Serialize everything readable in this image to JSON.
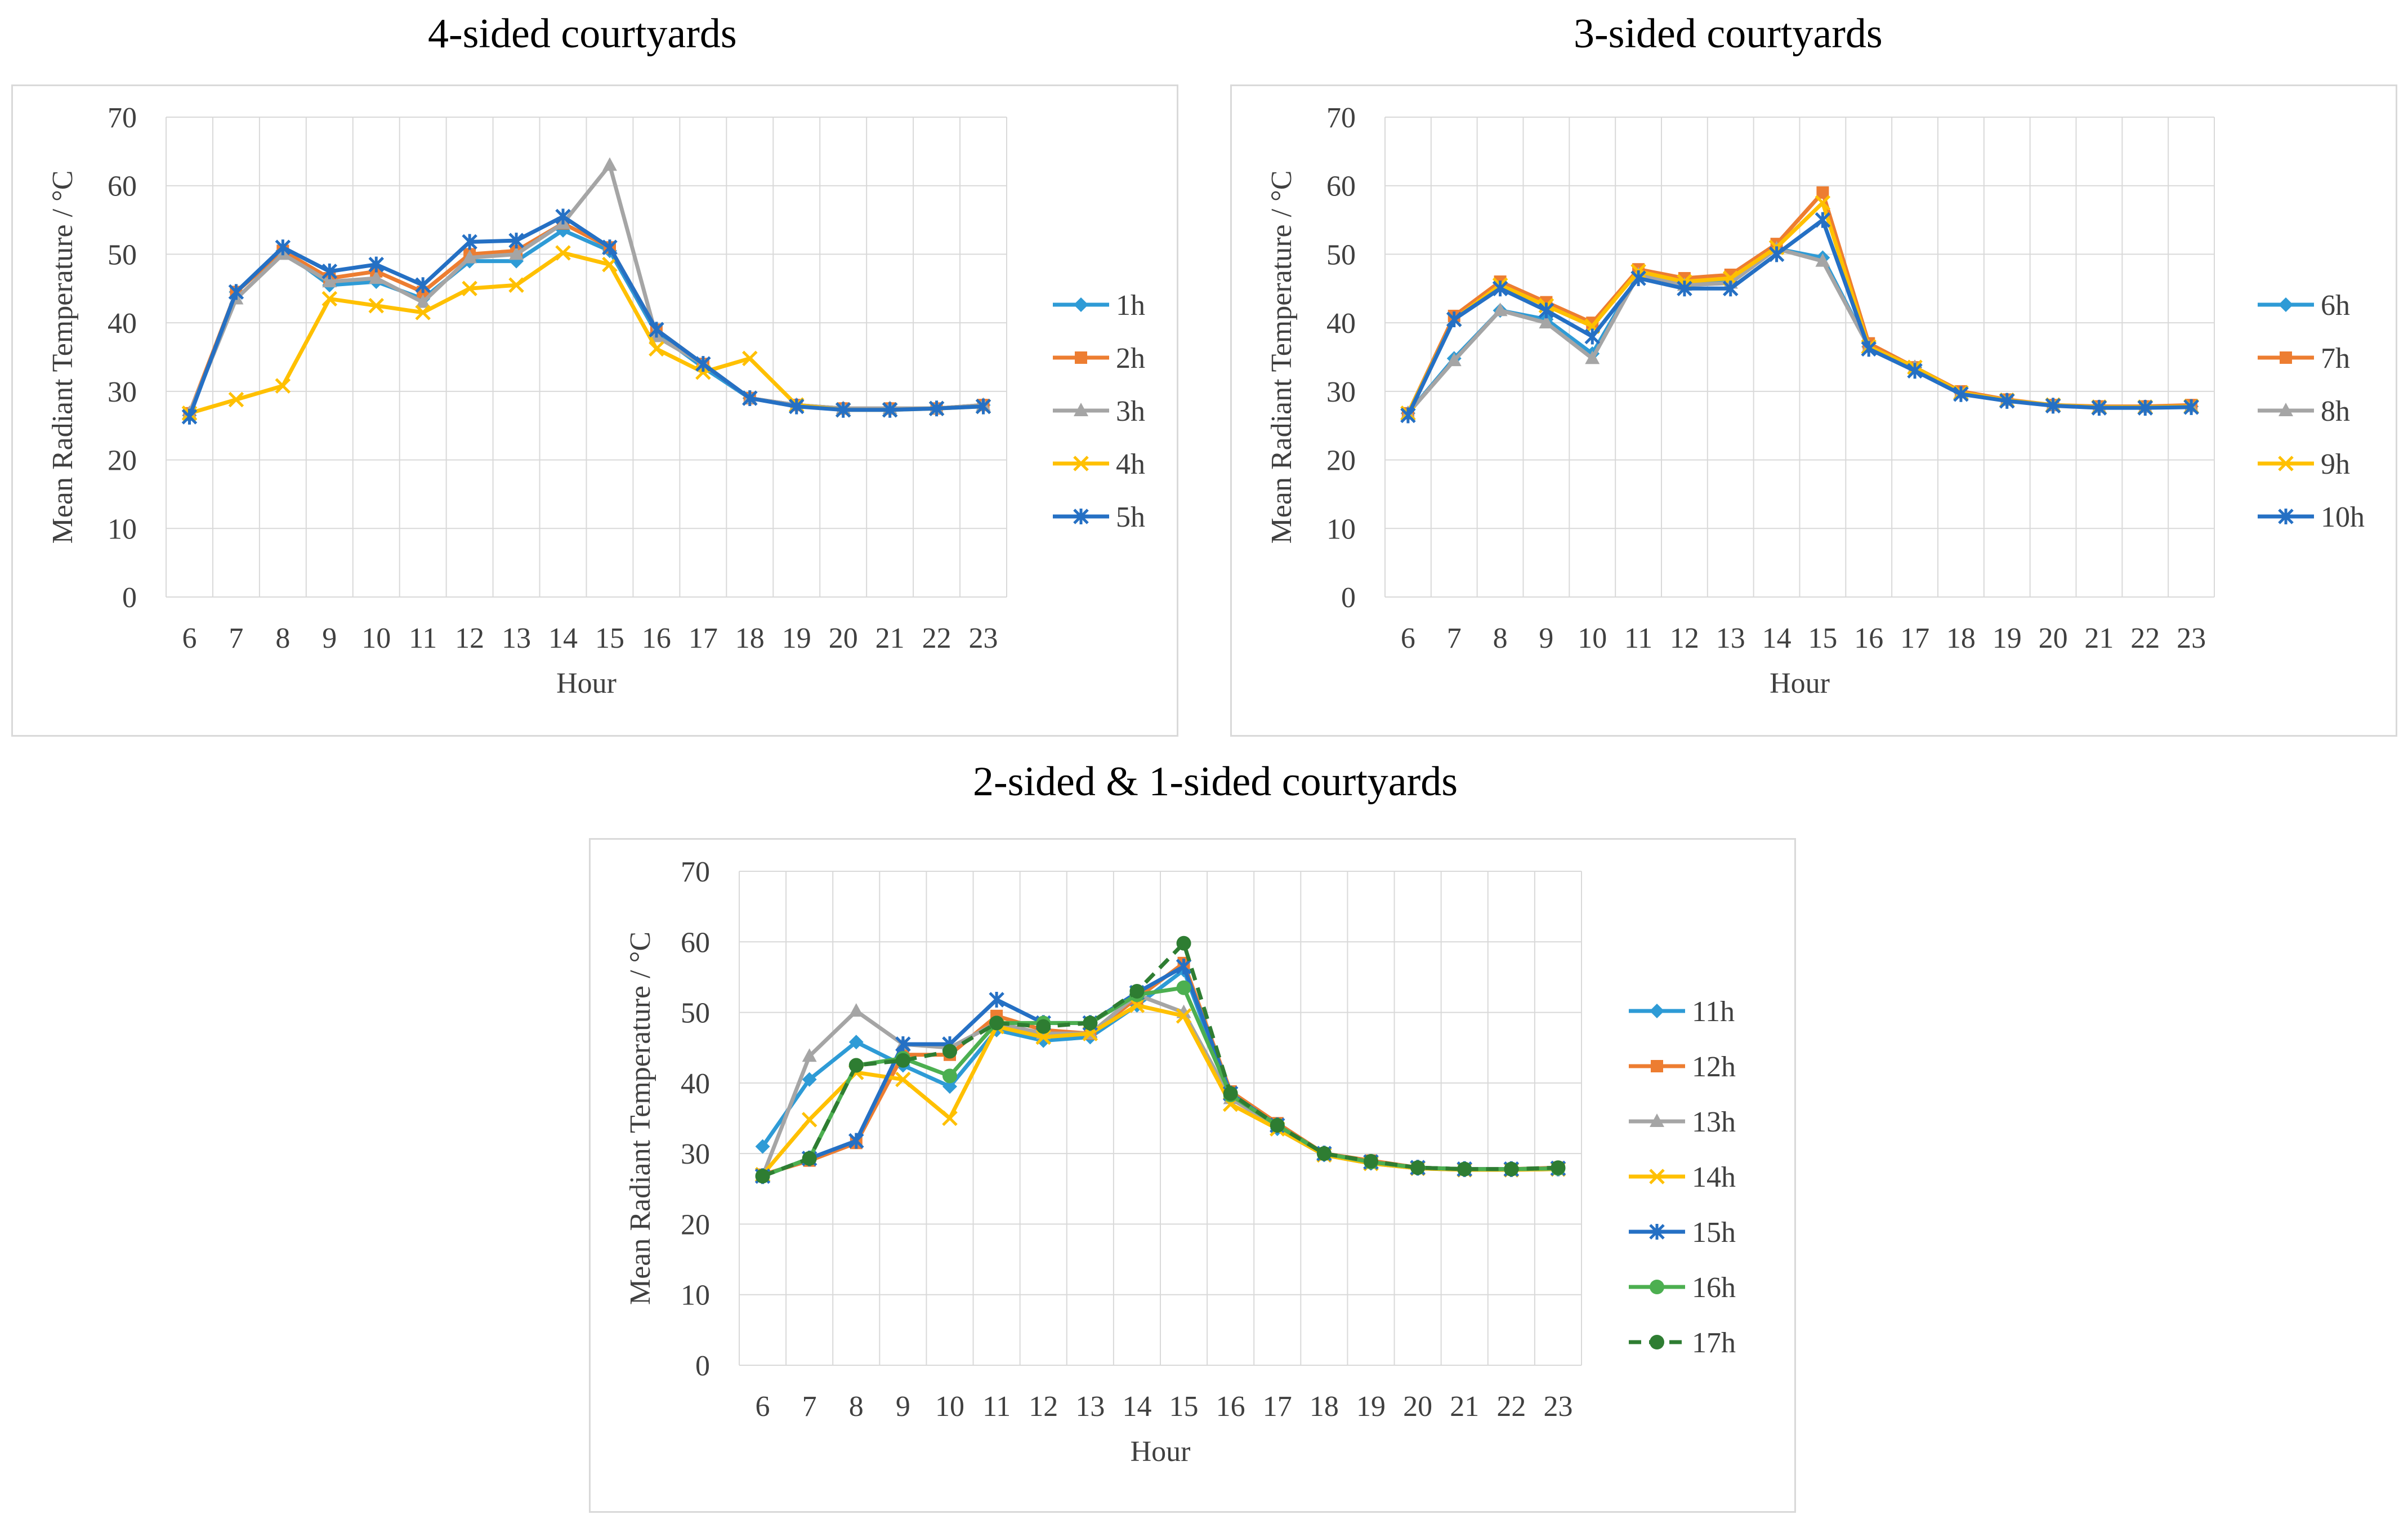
{
  "titles": {
    "four": "4-sided courtyards",
    "three": "3-sided courtyards",
    "twoone": "2-sided & 1-sided courtyards"
  },
  "chart_data": [
    {
      "id": "four",
      "type": "line",
      "title": "4-sided courtyards",
      "xlabel": "Hour",
      "ylabel": "Mean Radiant Temperature / °C",
      "categories": [
        "6",
        "7",
        "8",
        "9",
        "10",
        "11",
        "12",
        "13",
        "14",
        "15",
        "16",
        "17",
        "18",
        "19",
        "20",
        "21",
        "22",
        "23"
      ],
      "ylim": [
        0,
        70
      ],
      "yticks": [
        "0",
        "10",
        "20",
        "30",
        "40",
        "50",
        "60",
        "70"
      ],
      "grid": true,
      "legend": "right",
      "series": [
        {
          "name": "1h",
          "color": "#2e9bd6",
          "marker": "diamond",
          "values": [
            26.5,
            44.5,
            50.5,
            45.5,
            46,
            43.5,
            49,
            49,
            53.5,
            50.5,
            38.5,
            33.5,
            29,
            28,
            27.5,
            27.5,
            27.5,
            28
          ]
        },
        {
          "name": "2h",
          "color": "#ed7d31",
          "marker": "square",
          "values": [
            26.8,
            44.5,
            50.5,
            46.5,
            47.5,
            44.5,
            50,
            50.5,
            54.5,
            51,
            39,
            34,
            29,
            28,
            27.5,
            27.5,
            27.5,
            28
          ]
        },
        {
          "name": "3h",
          "color": "#a5a5a5",
          "marker": "triangle",
          "values": [
            26.8,
            43.5,
            50,
            46,
            46.5,
            43,
            49.5,
            50,
            54.5,
            63,
            38,
            34,
            29,
            28,
            27.5,
            27.5,
            27.5,
            28
          ]
        },
        {
          "name": "4h",
          "color": "#ffc000",
          "marker": "x",
          "values": [
            26.8,
            28.8,
            30.8,
            43.5,
            42.5,
            41.5,
            45,
            45.5,
            50.2,
            48.5,
            36.2,
            32.8,
            34.8,
            28,
            27.3,
            27.3,
            27.5,
            27.8
          ]
        },
        {
          "name": "5h",
          "color": "#2570c4",
          "marker": "star",
          "values": [
            26.3,
            44.5,
            51,
            47.5,
            48.5,
            45.5,
            51.8,
            52,
            55.5,
            51,
            39,
            34,
            29,
            27.8,
            27.3,
            27.3,
            27.5,
            27.8
          ]
        }
      ]
    },
    {
      "id": "three",
      "type": "line",
      "title": "3-sided courtyards",
      "xlabel": "Hour",
      "ylabel": "Mean Radiant Temperature / °C",
      "categories": [
        "6",
        "7",
        "8",
        "9",
        "10",
        "11",
        "12",
        "13",
        "14",
        "15",
        "16",
        "17",
        "18",
        "19",
        "20",
        "21",
        "22",
        "23"
      ],
      "ylim": [
        0,
        70
      ],
      "yticks": [
        "0",
        "10",
        "20",
        "30",
        "40",
        "50",
        "60",
        "70"
      ],
      "grid": true,
      "legend": "right",
      "series": [
        {
          "name": "6h",
          "color": "#2e9bd6",
          "marker": "diamond",
          "values": [
            26.8,
            34.8,
            41.8,
            40.5,
            35.5,
            47,
            45.5,
            46,
            50.8,
            49.5,
            36.5,
            33.5,
            29.8,
            28.7,
            28,
            27.7,
            27.7,
            27.8
          ]
        },
        {
          "name": "7h",
          "color": "#ed7d31",
          "marker": "square",
          "values": [
            26.8,
            41,
            46,
            43,
            40,
            47.8,
            46.5,
            47,
            51.5,
            59,
            37,
            33.5,
            30,
            28.8,
            28,
            27.8,
            27.8,
            28
          ]
        },
        {
          "name": "8h",
          "color": "#a5a5a5",
          "marker": "triangle",
          "values": [
            26.8,
            34.5,
            41.8,
            40,
            34.8,
            47,
            45.5,
            45.8,
            50.8,
            49,
            36.5,
            33.5,
            29.8,
            28.7,
            28,
            27.7,
            27.7,
            27.8
          ]
        },
        {
          "name": "9h",
          "color": "#ffc000",
          "marker": "x",
          "values": [
            26.8,
            40.5,
            45.5,
            42.5,
            39.5,
            47.5,
            46,
            46.5,
            51,
            57.5,
            36.5,
            33.5,
            29.8,
            28.7,
            28,
            27.7,
            27.7,
            27.8
          ]
        },
        {
          "name": "10h",
          "color": "#2570c4",
          "marker": "star",
          "values": [
            26.5,
            40.5,
            45,
            41.8,
            38,
            46.5,
            45,
            45,
            50,
            55,
            36.2,
            33,
            29.6,
            28.6,
            27.9,
            27.6,
            27.6,
            27.7
          ]
        }
      ]
    },
    {
      "id": "twoone",
      "type": "line",
      "title": "2-sided & 1-sided courtyards",
      "xlabel": "Hour",
      "ylabel": "Mean Radiant Temperature / °C",
      "categories": [
        "6",
        "7",
        "8",
        "9",
        "10",
        "11",
        "12",
        "13",
        "14",
        "15",
        "16",
        "17",
        "18",
        "19",
        "20",
        "21",
        "22",
        "23"
      ],
      "ylim": [
        0,
        70
      ],
      "yticks": [
        "0",
        "10",
        "20",
        "30",
        "40",
        "50",
        "60",
        "70"
      ],
      "grid": true,
      "legend": "right",
      "series": [
        {
          "name": "11h",
          "color": "#2e9bd6",
          "marker": "diamond",
          "dash": false,
          "values": [
            31,
            40.5,
            45.8,
            42.5,
            39.5,
            47.5,
            46,
            46.5,
            51,
            56,
            38,
            33.5,
            29.8,
            28.6,
            27.9,
            27.7,
            27.7,
            27.8
          ]
        },
        {
          "name": "12h",
          "color": "#ed7d31",
          "marker": "square",
          "dash": false,
          "values": [
            27,
            29,
            31.5,
            44,
            44,
            49.5,
            47.5,
            47,
            52,
            57,
            38.8,
            34.3,
            30,
            29,
            28,
            27.8,
            27.8,
            28
          ]
        },
        {
          "name": "13h",
          "color": "#a5a5a5",
          "marker": "triangle",
          "dash": false,
          "values": [
            26.8,
            43.8,
            50.2,
            45.5,
            45,
            48.5,
            47,
            47,
            52.5,
            50,
            37.8,
            33.8,
            29.8,
            28.7,
            27.9,
            27.7,
            27.7,
            27.8
          ]
        },
        {
          "name": "14h",
          "color": "#ffc000",
          "marker": "x",
          "dash": false,
          "values": [
            27,
            34.8,
            41.5,
            40.5,
            35,
            48,
            46.5,
            47,
            51,
            49.5,
            37,
            33.5,
            29.8,
            28.6,
            27.9,
            27.7,
            27.7,
            27.8
          ]
        },
        {
          "name": "15h",
          "color": "#2570c4",
          "marker": "star",
          "dash": false,
          "values": [
            26.8,
            29.3,
            31.8,
            45.5,
            45.5,
            51.8,
            48.5,
            48.5,
            52.8,
            56.5,
            38.5,
            34,
            30,
            28.8,
            28,
            27.8,
            27.8,
            27.9
          ]
        },
        {
          "name": "16h",
          "color": "#4caf50",
          "marker": "circle",
          "dash": false,
          "values": [
            26.8,
            29.3,
            42.5,
            43.5,
            41,
            48.5,
            48.5,
            48.5,
            52.5,
            53.5,
            38.3,
            34,
            30,
            28.8,
            28,
            27.8,
            27.8,
            27.9
          ]
        },
        {
          "name": "17h",
          "color": "#2e7d32",
          "marker": "circle",
          "dash": true,
          "values": [
            26.8,
            29.3,
            42.5,
            43.2,
            44.5,
            48.5,
            48,
            48.5,
            53,
            59.8,
            38.5,
            34,
            30,
            28.9,
            28,
            27.8,
            27.8,
            28
          ]
        }
      ]
    }
  ]
}
